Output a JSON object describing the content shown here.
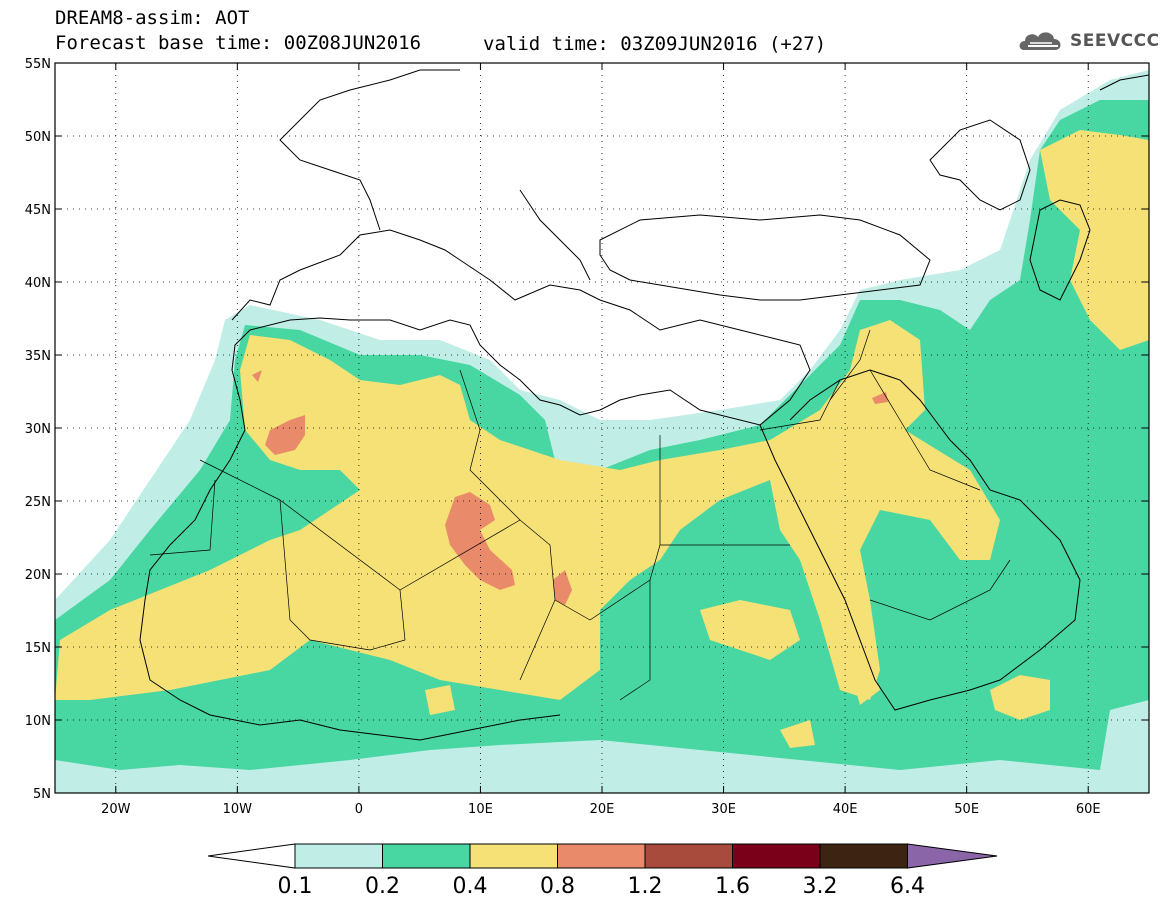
{
  "header": {
    "title_line1": "DREAM8-assim: AOT",
    "title_line2": "Forecast base time: 00Z08JUN2016",
    "valid_time": "valid time: 03Z09JUN2016 (+27)",
    "logo_text": "SEEVCCC"
  },
  "map": {
    "lon_range": [
      -25,
      65
    ],
    "lat_range": [
      5,
      55
    ],
    "lon_ticks": [
      {
        "lon": -20,
        "label": "20W"
      },
      {
        "lon": -10,
        "label": "10W"
      },
      {
        "lon": 0,
        "label": "0"
      },
      {
        "lon": 10,
        "label": "10E"
      },
      {
        "lon": 20,
        "label": "20E"
      },
      {
        "lon": 30,
        "label": "30E"
      },
      {
        "lon": 40,
        "label": "40E"
      },
      {
        "lon": 50,
        "label": "50E"
      },
      {
        "lon": 60,
        "label": "60E"
      }
    ],
    "lat_ticks": [
      {
        "lat": 55,
        "label": "55N"
      },
      {
        "lat": 50,
        "label": "50N"
      },
      {
        "lat": 45,
        "label": "45N"
      },
      {
        "lat": 40,
        "label": "40N"
      },
      {
        "lat": 35,
        "label": "35N"
      },
      {
        "lat": 30,
        "label": "30N"
      },
      {
        "lat": 25,
        "label": "25N"
      },
      {
        "lat": 20,
        "label": "20N"
      },
      {
        "lat": 15,
        "label": "15N"
      },
      {
        "lat": 10,
        "label": "10N"
      },
      {
        "lat": 5,
        "label": "5N"
      }
    ]
  },
  "colorbar": {
    "labels": [
      "0.1",
      "0.2",
      "0.4",
      "0.8",
      "1.2",
      "1.6",
      "3.2",
      "6.4"
    ],
    "colors": [
      "#ffffff",
      "#c0eee6",
      "#48d6a2",
      "#f5e176",
      "#e98a6a",
      "#a84b3d",
      "#7a001a",
      "#3d2412",
      "#8a66a8"
    ]
  },
  "colors": {
    "c1": "#c0eee6",
    "c2": "#48d6a2",
    "c3": "#f5e176",
    "c4": "#e98a6a"
  }
}
